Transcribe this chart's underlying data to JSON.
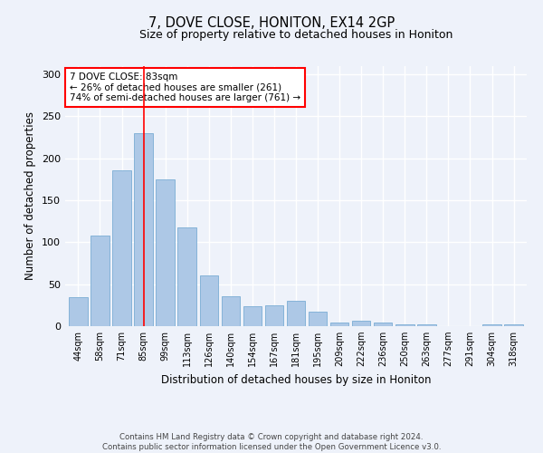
{
  "title": "7, DOVE CLOSE, HONITON, EX14 2GP",
  "subtitle": "Size of property relative to detached houses in Honiton",
  "xlabel": "Distribution of detached houses by size in Honiton",
  "ylabel": "Number of detached properties",
  "categories": [
    "44sqm",
    "58sqm",
    "71sqm",
    "85sqm",
    "99sqm",
    "113sqm",
    "126sqm",
    "140sqm",
    "154sqm",
    "167sqm",
    "181sqm",
    "195sqm",
    "209sqm",
    "222sqm",
    "236sqm",
    "250sqm",
    "263sqm",
    "277sqm",
    "291sqm",
    "304sqm",
    "318sqm"
  ],
  "values": [
    35,
    108,
    185,
    230,
    175,
    117,
    60,
    36,
    24,
    25,
    30,
    17,
    4,
    7,
    4,
    2,
    2,
    0,
    0,
    2,
    2
  ],
  "bar_color": "#adc8e6",
  "bar_edge_color": "#7aadd4",
  "vline_x_index": 3,
  "vline_color": "red",
  "annotation_text": "7 DOVE CLOSE: 83sqm\n← 26% of detached houses are smaller (261)\n74% of semi-detached houses are larger (761) →",
  "annotation_box_color": "white",
  "annotation_box_edge_color": "red",
  "ylim": [
    0,
    310
  ],
  "yticks": [
    0,
    50,
    100,
    150,
    200,
    250,
    300
  ],
  "bg_color": "#eef2fa",
  "grid_color": "white",
  "footer_text": "Contains HM Land Registry data © Crown copyright and database right 2024.\nContains public sector information licensed under the Open Government Licence v3.0."
}
